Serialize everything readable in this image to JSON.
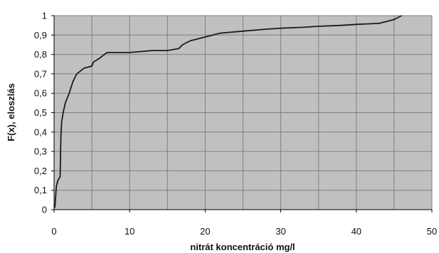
{
  "chart_data": {
    "type": "line",
    "title": "",
    "xlabel": "nitrát koncentráció mg/l",
    "ylabel": "F(x), eloszlás",
    "xlim": [
      0,
      50
    ],
    "ylim": [
      0,
      1
    ],
    "x_ticks": [
      {
        "value": 0,
        "label": "0"
      },
      {
        "value": 10,
        "label": "10"
      },
      {
        "value": 20,
        "label": "20"
      },
      {
        "value": 30,
        "label": "30"
      },
      {
        "value": 40,
        "label": "40"
      },
      {
        "value": 50,
        "label": "50"
      }
    ],
    "y_ticks": [
      {
        "value": 0,
        "label": "0"
      },
      {
        "value": 0.1,
        "label": "0,1"
      },
      {
        "value": 0.2,
        "label": "0,2"
      },
      {
        "value": 0.3,
        "label": "0,3"
      },
      {
        "value": 0.4,
        "label": "0,4"
      },
      {
        "value": 0.5,
        "label": "0,5"
      },
      {
        "value": 0.6,
        "label": "0,6"
      },
      {
        "value": 0.7,
        "label": "0,7"
      },
      {
        "value": 0.8,
        "label": "0,8"
      },
      {
        "value": 0.9,
        "label": "0,9"
      },
      {
        "value": 1,
        "label": "1"
      }
    ],
    "x_grid_step": 5,
    "y_grid_step": 0.1,
    "grid": true,
    "legend": false,
    "plot_background": "#c0c0c0",
    "grid_color": "#808080",
    "line_color": "#1a1a1a",
    "series": [
      {
        "x": [
          0.1,
          0.3,
          0.5,
          0.8,
          0.9,
          1.0,
          1.2,
          1.5,
          2.0,
          2.5,
          3.0,
          4.0,
          5.0,
          5.2,
          6.0,
          7.0,
          10.0,
          13.0,
          15.0,
          16.5,
          17.0,
          18.0,
          20.0,
          22.0,
          25.0,
          28.0,
          30.0,
          33.0,
          35.0,
          38.0,
          40.0,
          43.0,
          44.0,
          45.0,
          46.0
        ],
        "y": [
          0.01,
          0.12,
          0.15,
          0.17,
          0.38,
          0.45,
          0.5,
          0.55,
          0.6,
          0.66,
          0.7,
          0.73,
          0.74,
          0.76,
          0.78,
          0.81,
          0.81,
          0.82,
          0.82,
          0.83,
          0.85,
          0.87,
          0.89,
          0.91,
          0.92,
          0.93,
          0.935,
          0.94,
          0.945,
          0.95,
          0.955,
          0.96,
          0.97,
          0.98,
          1.0
        ]
      }
    ]
  }
}
